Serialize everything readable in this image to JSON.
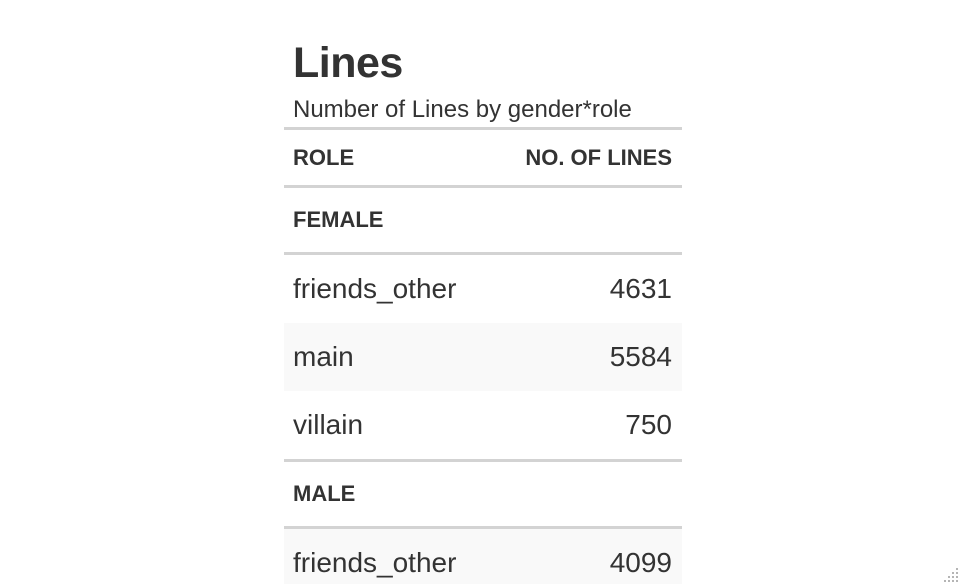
{
  "chart_data": {
    "type": "table",
    "title": "Lines",
    "subtitle": "Number of Lines by gender*role",
    "columns": [
      "ROLE",
      "NO. OF LINES"
    ],
    "groups": [
      {
        "name": "FEMALE",
        "rows": [
          {
            "role": "friends_other",
            "lines": 4631
          },
          {
            "role": "main",
            "lines": 5584
          },
          {
            "role": "villain",
            "lines": 750
          }
        ]
      },
      {
        "name": "MALE",
        "rows": [
          {
            "role": "friends_other",
            "lines": 4099
          }
        ]
      }
    ]
  },
  "colors": {
    "text": "#333333",
    "rule": "#d3d3d3",
    "stripe": "#f9f9f9"
  },
  "icons": {
    "corner": "resize-grip-icon"
  }
}
